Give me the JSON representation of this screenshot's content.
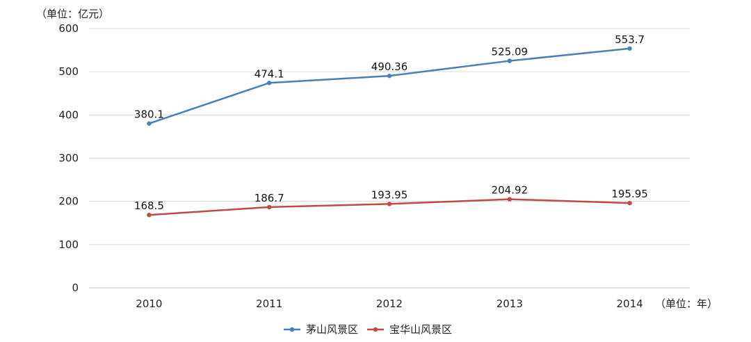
{
  "chart_data": {
    "type": "line",
    "categories": [
      "2010",
      "2011",
      "2012",
      "2013",
      "2014"
    ],
    "series": [
      {
        "name": "茅山风景区",
        "values": [
          380.1,
          474.1,
          490.36,
          525.09,
          553.7
        ],
        "labels": [
          "380.1",
          "474.1",
          "490.36",
          "525.09",
          "553.7"
        ],
        "color": "#4a7ebb"
      },
      {
        "name": "宝华山风景区",
        "values": [
          168.5,
          186.7,
          193.95,
          204.92,
          195.95
        ],
        "labels": [
          "168.5",
          "186.7",
          "193.95",
          "204.92",
          "195.95"
        ],
        "color": "#be4b48"
      }
    ],
    "y_unit_label": "（单位：亿元）",
    "x_unit_label": "（单位：年）",
    "ylim": [
      0,
      600
    ],
    "yticks": [
      0,
      100,
      200,
      300,
      400,
      500,
      600
    ],
    "grid": true,
    "legend_position": "bottom"
  }
}
